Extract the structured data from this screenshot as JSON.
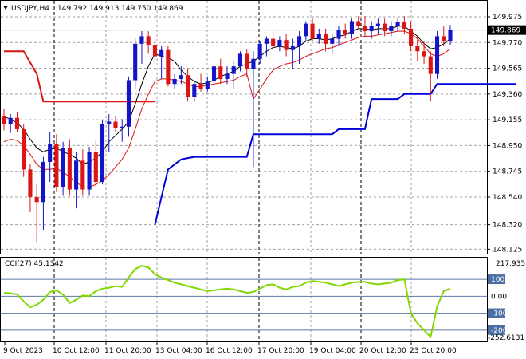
{
  "header": {
    "symbol": "USDJPY,H4",
    "ohlc": "149.792 149.913 149.750 149.869",
    "menu_icon": "triangle-down-icon"
  },
  "colors": {
    "bull": "#1414c8",
    "bear": "#dc1414",
    "ma_fast": "#000000",
    "ma_slow": "#dc1414",
    "stop_bear": "#dc1414",
    "stop_bull": "#0000dc",
    "cci": "#7fd800",
    "grid": "#a0a0a0",
    "level_badge": "#4a6fa5"
  },
  "chart_data": [
    {
      "type": "candlestick",
      "title": "USDJPY,H4",
      "ylim": [
        148.14,
        150.07
      ],
      "y_ticks": [
        "149.975",
        "149.770",
        "149.565",
        "149.360",
        "149.155",
        "148.950",
        "148.745",
        "148.540",
        "148.320",
        "148.125"
      ],
      "current_price": "149.869",
      "x_tick_labels": [
        "9 Oct 2023",
        "10 Oct 12:00",
        "11 Oct 20:00",
        "13 Oct 04:00",
        "16 Oct 12:00",
        "17 Oct 20:00",
        "19 Oct 04:00",
        "20 Oct 12:00",
        "23 Oct 20:00"
      ],
      "candles": [
        [
          149.18,
          149.24,
          149.07,
          149.12
        ],
        [
          149.12,
          149.2,
          149.05,
          149.17
        ],
        [
          149.17,
          149.22,
          149.06,
          149.08
        ],
        [
          149.08,
          149.12,
          148.7,
          148.76
        ],
        [
          148.76,
          148.8,
          148.42,
          148.54
        ],
        [
          148.54,
          148.64,
          148.18,
          148.5
        ],
        [
          148.5,
          148.86,
          148.28,
          148.82
        ],
        [
          148.82,
          149.06,
          148.66,
          148.96
        ],
        [
          148.96,
          149.04,
          148.58,
          148.62
        ],
        [
          148.62,
          148.98,
          148.55,
          148.93
        ],
        [
          148.93,
          149.0,
          148.55,
          148.6
        ],
        [
          148.6,
          148.9,
          148.45,
          148.83
        ],
        [
          148.83,
          148.92,
          148.55,
          148.6
        ],
        [
          148.6,
          148.94,
          148.55,
          148.9
        ],
        [
          148.9,
          149.0,
          148.62,
          148.66
        ],
        [
          148.66,
          149.15,
          148.64,
          149.12
        ],
        [
          149.12,
          149.2,
          148.9,
          149.14
        ],
        [
          149.14,
          149.18,
          149.06,
          149.09
        ],
        [
          149.09,
          149.16,
          148.98,
          149.1
        ],
        [
          149.1,
          149.5,
          149.02,
          149.47
        ],
        [
          149.47,
          149.8,
          149.4,
          149.76
        ],
        [
          149.76,
          149.86,
          149.6,
          149.82
        ],
        [
          149.82,
          149.86,
          149.68,
          149.75
        ],
        [
          149.75,
          149.82,
          149.6,
          149.66
        ],
        [
          149.66,
          149.74,
          149.48,
          149.71
        ],
        [
          149.71,
          149.74,
          149.42,
          149.44
        ],
        [
          149.44,
          149.52,
          149.4,
          149.48
        ],
        [
          149.48,
          149.58,
          149.44,
          149.51
        ],
        [
          149.51,
          149.56,
          149.3,
          149.34
        ],
        [
          149.34,
          149.46,
          149.3,
          149.44
        ],
        [
          149.44,
          149.52,
          149.38,
          149.4
        ],
        [
          149.4,
          149.5,
          149.38,
          149.46
        ],
        [
          149.46,
          149.6,
          149.4,
          149.58
        ],
        [
          149.58,
          149.64,
          149.44,
          149.48
        ],
        [
          149.48,
          149.58,
          149.44,
          149.52
        ],
        [
          149.52,
          149.62,
          149.4,
          149.58
        ],
        [
          149.58,
          149.7,
          149.54,
          149.68
        ],
        [
          149.68,
          149.72,
          149.5,
          149.56
        ],
        [
          149.56,
          149.7,
          148.78,
          149.64
        ],
        [
          149.64,
          149.78,
          149.6,
          149.76
        ],
        [
          149.76,
          149.82,
          149.66,
          149.8
        ],
        [
          149.8,
          149.86,
          149.72,
          149.74
        ],
        [
          149.74,
          149.82,
          149.7,
          149.79
        ],
        [
          149.79,
          149.84,
          149.66,
          149.71
        ],
        [
          149.71,
          149.8,
          149.56,
          149.74
        ],
        [
          149.74,
          149.86,
          149.6,
          149.82
        ],
        [
          149.82,
          149.94,
          149.78,
          149.92
        ],
        [
          149.92,
          149.96,
          149.78,
          149.8
        ],
        [
          149.8,
          149.88,
          149.76,
          149.84
        ],
        [
          149.84,
          149.88,
          149.7,
          149.76
        ],
        [
          149.76,
          149.84,
          149.68,
          149.8
        ],
        [
          149.8,
          149.9,
          149.74,
          149.87
        ],
        [
          149.87,
          149.92,
          149.8,
          149.84
        ],
        [
          149.84,
          149.96,
          149.8,
          149.94
        ],
        [
          149.94,
          149.98,
          149.88,
          149.9
        ],
        [
          149.9,
          149.98,
          149.82,
          149.86
        ],
        [
          149.86,
          149.94,
          149.8,
          149.9
        ],
        [
          149.9,
          149.96,
          149.84,
          149.92
        ],
        [
          149.92,
          149.96,
          149.82,
          149.86
        ],
        [
          149.86,
          149.94,
          149.82,
          149.9
        ],
        [
          149.9,
          149.97,
          149.86,
          149.93
        ],
        [
          149.93,
          149.98,
          149.84,
          149.88
        ],
        [
          149.88,
          149.94,
          149.7,
          149.74
        ],
        [
          149.74,
          149.82,
          149.62,
          149.7
        ],
        [
          149.7,
          149.78,
          149.6,
          149.66
        ],
        [
          149.66,
          149.7,
          149.3,
          149.52
        ],
        [
          149.52,
          149.86,
          149.48,
          149.82
        ],
        [
          149.82,
          149.9,
          149.74,
          149.78
        ],
        [
          149.78,
          149.91,
          149.75,
          149.87
        ]
      ],
      "ma_fast": [
        149.18,
        149.16,
        149.13,
        149.08,
        149.0,
        148.93,
        148.9,
        148.92,
        148.93,
        148.9,
        148.88,
        148.85,
        148.8,
        148.82,
        148.85,
        148.9,
        148.98,
        149.03,
        149.08,
        149.14,
        149.28,
        149.44,
        149.58,
        149.68,
        149.66,
        149.65,
        149.62,
        149.55,
        149.5,
        149.46,
        149.44,
        149.45,
        149.47,
        149.5,
        149.52,
        149.54,
        149.58,
        149.6,
        149.62,
        149.66,
        149.7,
        149.73,
        149.74,
        149.73,
        149.72,
        149.74,
        149.78,
        149.8,
        149.8,
        149.79,
        149.8,
        149.82,
        149.83,
        149.86,
        149.88,
        149.88,
        149.87,
        149.88,
        149.88,
        149.88,
        149.9,
        149.9,
        149.86,
        149.82,
        149.76,
        149.72,
        149.73,
        149.76,
        149.8
      ],
      "ma_slow": [
        148.98,
        149.0,
        148.99,
        148.95,
        148.88,
        148.8,
        148.76,
        148.76,
        148.77,
        148.74,
        148.7,
        148.66,
        148.62,
        148.62,
        148.64,
        148.67,
        148.72,
        148.78,
        148.84,
        148.93,
        149.08,
        149.24,
        149.36,
        149.46,
        149.48,
        149.48,
        149.47,
        149.46,
        149.44,
        149.42,
        149.42,
        149.43,
        149.44,
        149.45,
        149.46,
        149.47,
        149.5,
        149.52,
        149.32,
        149.4,
        149.48,
        149.55,
        149.58,
        149.6,
        149.61,
        149.63,
        149.66,
        149.68,
        149.7,
        149.72,
        149.73,
        149.75,
        149.77,
        149.79,
        149.81,
        149.82,
        149.82,
        149.83,
        149.84,
        149.85,
        149.86,
        149.86,
        149.84,
        149.8,
        149.74,
        149.68,
        149.66,
        149.68,
        149.72
      ],
      "stop_down": [
        [
          0,
          149.7
        ],
        [
          3,
          149.7
        ],
        [
          5,
          149.52
        ],
        [
          6,
          149.3
        ],
        [
          23,
          149.3
        ]
      ],
      "stop_up": [
        [
          23,
          148.32
        ],
        [
          25,
          148.76
        ],
        [
          27,
          148.84
        ],
        [
          29,
          148.86
        ],
        [
          37,
          148.86
        ],
        [
          38,
          149.04
        ],
        [
          50,
          149.04
        ],
        [
          51,
          149.08
        ],
        [
          55,
          149.08
        ],
        [
          56,
          149.32
        ],
        [
          60,
          149.32
        ],
        [
          61,
          149.36
        ],
        [
          65,
          149.36
        ],
        [
          66,
          149.44
        ],
        [
          78,
          149.44
        ]
      ]
    },
    {
      "type": "line",
      "title": "CCI(27) 45.1342",
      "ylim": [
        -252.6131,
        217.9355
      ],
      "levels": [
        100,
        0,
        -100,
        -200
      ],
      "level_labels": [
        "100",
        "0.00",
        "-100",
        "-200"
      ],
      "scale_max_label": "217.9355",
      "scale_min_label": "-252.6131",
      "values": [
        20,
        18,
        10,
        -30,
        -65,
        -50,
        -20,
        25,
        35,
        10,
        -40,
        -20,
        5,
        0,
        30,
        45,
        50,
        60,
        55,
        110,
        160,
        180,
        170,
        130,
        110,
        95,
        80,
        70,
        60,
        50,
        40,
        30,
        35,
        40,
        45,
        40,
        30,
        20,
        25,
        45,
        65,
        70,
        50,
        40,
        55,
        60,
        80,
        90,
        85,
        80,
        70,
        60,
        70,
        80,
        85,
        85,
        75,
        70,
        75,
        80,
        95,
        100,
        -100,
        -160,
        -200,
        -240,
        -60,
        30,
        45
      ]
    }
  ]
}
